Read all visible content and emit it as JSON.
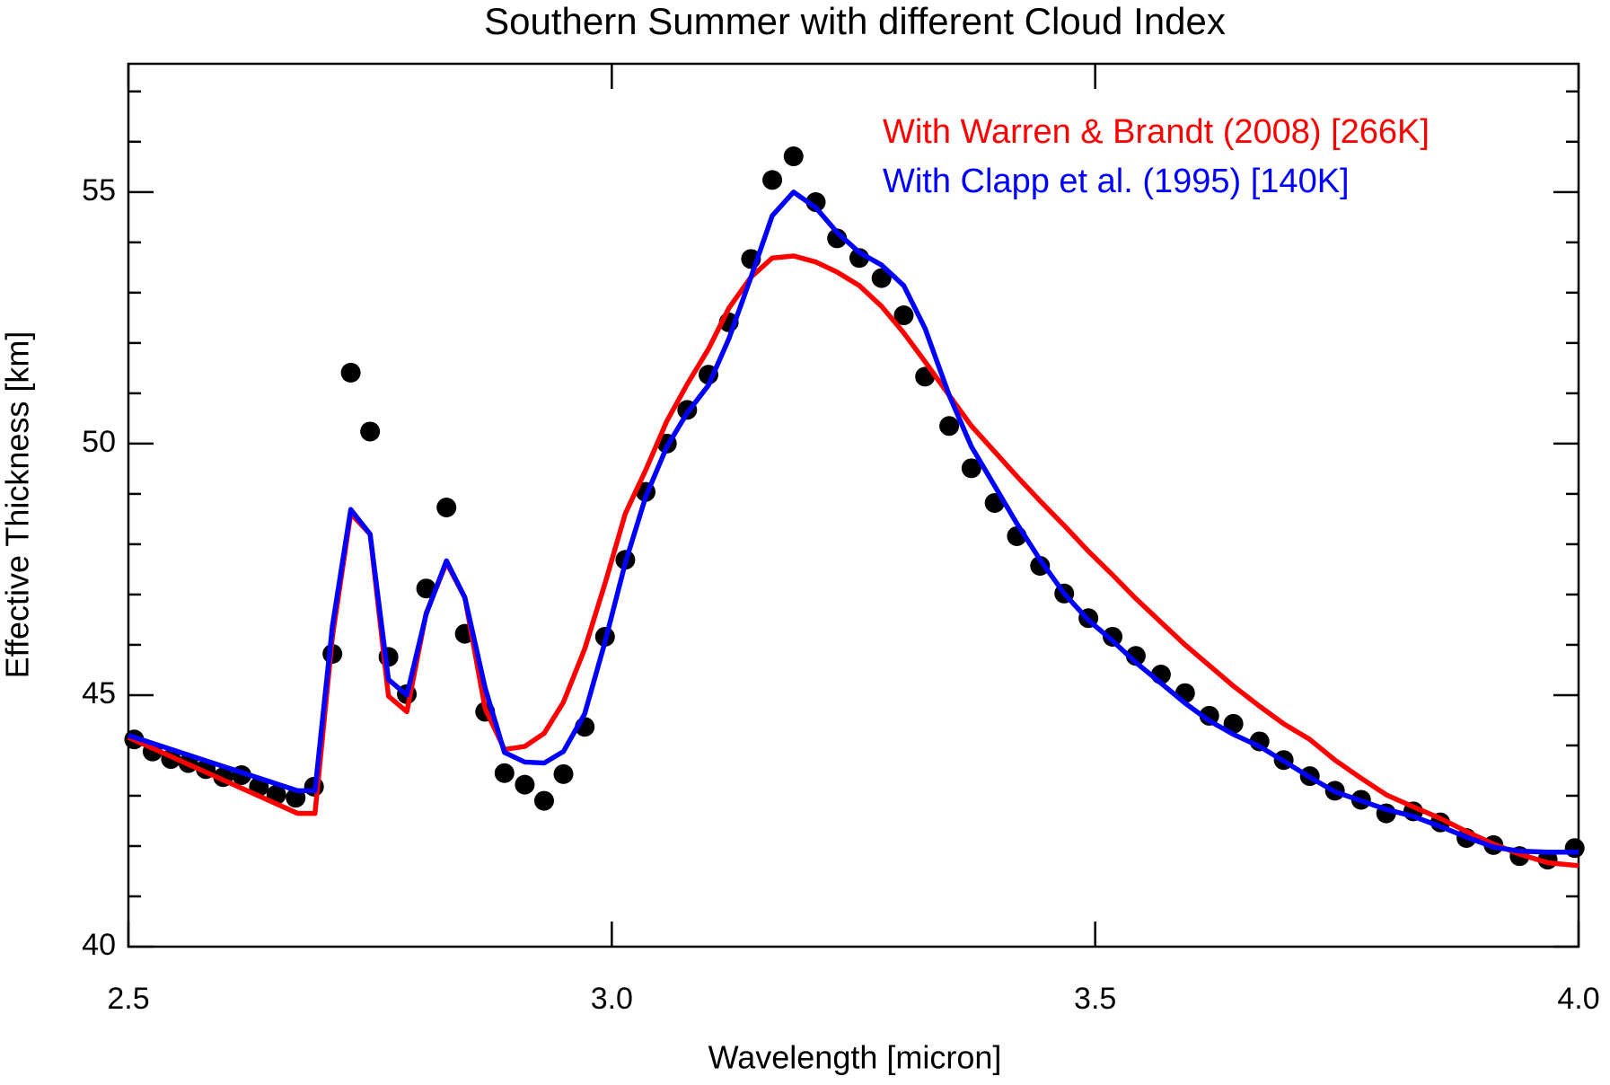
{
  "chart_data": {
    "type": "line",
    "title": "Southern Summer with different Cloud Index",
    "xlabel": "Wavelength [micron]",
    "ylabel": "Effective Thickness [km]",
    "xlim": [
      2.5,
      4.0
    ],
    "ylim": [
      40,
      57.55
    ],
    "xticks": [
      {
        "value": 2.5,
        "label": "2.5"
      },
      {
        "value": 3.0,
        "label": "3.0"
      },
      {
        "value": 3.5,
        "label": "3.5"
      },
      {
        "value": 4.0,
        "label": "4.0"
      }
    ],
    "yticks": [
      40,
      45,
      50,
      55
    ],
    "yminorticks": [
      41,
      42,
      43,
      44,
      46,
      47,
      48,
      49,
      51,
      52,
      53,
      54,
      56,
      57
    ],
    "legend": "upper right",
    "series": [
      {
        "type": "scatter",
        "color": "#000000",
        "x": [
          2.506,
          2.525,
          2.544,
          2.562,
          2.58,
          2.598,
          2.617,
          2.635,
          2.653,
          2.673,
          2.692,
          2.711,
          2.73,
          2.75,
          2.769,
          2.788,
          2.808,
          2.829,
          2.848,
          2.869,
          2.889,
          2.91,
          2.93,
          2.95,
          2.972,
          2.993,
          3.014,
          3.035,
          3.057,
          3.078,
          3.1,
          3.121,
          3.144,
          3.166,
          3.188,
          3.211,
          3.233,
          3.256,
          3.279,
          3.302,
          3.324,
          3.349,
          3.372,
          3.396,
          3.419,
          3.443,
          3.468,
          3.493,
          3.518,
          3.542,
          3.568,
          3.593,
          3.618,
          3.643,
          3.67,
          3.695,
          3.722,
          3.748,
          3.775,
          3.801,
          3.829,
          3.857,
          3.884,
          3.912,
          3.939,
          3.968,
          3.996
        ],
        "values": [
          44.12,
          43.88,
          43.73,
          43.65,
          43.53,
          43.37,
          43.41,
          43.18,
          43.02,
          42.96,
          43.18,
          45.82,
          51.41,
          50.24,
          45.76,
          45.02,
          47.12,
          48.73,
          46.22,
          44.67,
          43.45,
          43.22,
          42.9,
          43.43,
          44.37,
          46.16,
          47.69,
          49.04,
          50.0,
          50.67,
          51.37,
          52.41,
          53.67,
          55.24,
          55.71,
          54.8,
          54.08,
          53.69,
          53.29,
          52.55,
          51.33,
          50.35,
          49.51,
          48.82,
          48.16,
          47.57,
          47.02,
          46.53,
          46.16,
          45.78,
          45.41,
          45.04,
          44.59,
          44.43,
          44.08,
          43.71,
          43.39,
          43.1,
          42.92,
          42.65,
          42.69,
          42.47,
          42.16,
          42.02,
          41.8,
          41.73,
          41.96
        ]
      },
      {
        "name": "With Warren & Brandt (2008) [266K]",
        "color": "#ff0000",
        "x": [
          2.5,
          2.675,
          2.693,
          2.711,
          2.73,
          2.75,
          2.769,
          2.788,
          2.808,
          2.829,
          2.848,
          2.869,
          2.889,
          2.91,
          2.93,
          2.95,
          2.972,
          2.993,
          3.014,
          3.035,
          3.057,
          3.078,
          3.1,
          3.121,
          3.144,
          3.166,
          3.188,
          3.211,
          3.233,
          3.256,
          3.279,
          3.302,
          3.324,
          3.349,
          3.372,
          3.396,
          3.419,
          3.443,
          3.468,
          3.493,
          3.518,
          3.542,
          3.568,
          3.593,
          3.618,
          3.643,
          3.67,
          3.695,
          3.722,
          3.748,
          3.775,
          3.801,
          3.829,
          3.857,
          3.884,
          3.912,
          3.939,
          3.968,
          4.0
        ],
        "values": [
          44.16,
          42.65,
          42.65,
          46.16,
          48.61,
          48.2,
          44.98,
          44.67,
          46.63,
          47.63,
          46.94,
          44.73,
          43.92,
          43.98,
          44.24,
          44.86,
          45.92,
          47.22,
          48.61,
          49.47,
          50.45,
          51.18,
          51.88,
          52.69,
          53.31,
          53.69,
          53.73,
          53.61,
          53.41,
          53.14,
          52.73,
          52.2,
          51.63,
          50.96,
          50.35,
          49.84,
          49.35,
          48.86,
          48.37,
          47.86,
          47.39,
          46.92,
          46.45,
          46.0,
          45.59,
          45.18,
          44.78,
          44.43,
          44.12,
          43.71,
          43.35,
          43.02,
          42.78,
          42.55,
          42.29,
          42.04,
          41.84,
          41.67,
          41.61
        ]
      },
      {
        "name": "With Clapp et al. (1995) [140K]",
        "color": "#0000ff",
        "x": [
          2.5,
          2.675,
          2.693,
          2.711,
          2.73,
          2.75,
          2.769,
          2.788,
          2.808,
          2.829,
          2.848,
          2.869,
          2.889,
          2.91,
          2.93,
          2.95,
          2.972,
          2.993,
          3.014,
          3.035,
          3.057,
          3.078,
          3.1,
          3.121,
          3.144,
          3.166,
          3.188,
          3.211,
          3.233,
          3.256,
          3.279,
          3.302,
          3.324,
          3.349,
          3.372,
          3.396,
          3.419,
          3.443,
          3.468,
          3.493,
          3.518,
          3.542,
          3.568,
          3.593,
          3.618,
          3.643,
          3.67,
          3.695,
          3.722,
          3.748,
          3.775,
          3.801,
          3.829,
          3.857,
          3.884,
          3.912,
          3.939,
          3.968,
          4.0
        ],
        "values": [
          44.2,
          43.1,
          43.1,
          46.37,
          48.69,
          48.2,
          45.31,
          45.0,
          46.61,
          47.67,
          46.94,
          45.14,
          43.86,
          43.67,
          43.65,
          43.88,
          44.63,
          46.06,
          47.63,
          48.94,
          49.94,
          50.61,
          51.16,
          52.08,
          53.31,
          54.53,
          55.0,
          54.69,
          54.2,
          53.8,
          53.55,
          53.14,
          52.29,
          50.96,
          49.94,
          49.16,
          48.41,
          47.69,
          47.02,
          46.49,
          46.08,
          45.65,
          45.24,
          44.84,
          44.49,
          44.22,
          43.98,
          43.69,
          43.37,
          43.08,
          42.9,
          42.73,
          42.59,
          42.39,
          42.18,
          41.98,
          41.9,
          41.88,
          41.88
        ]
      }
    ]
  }
}
